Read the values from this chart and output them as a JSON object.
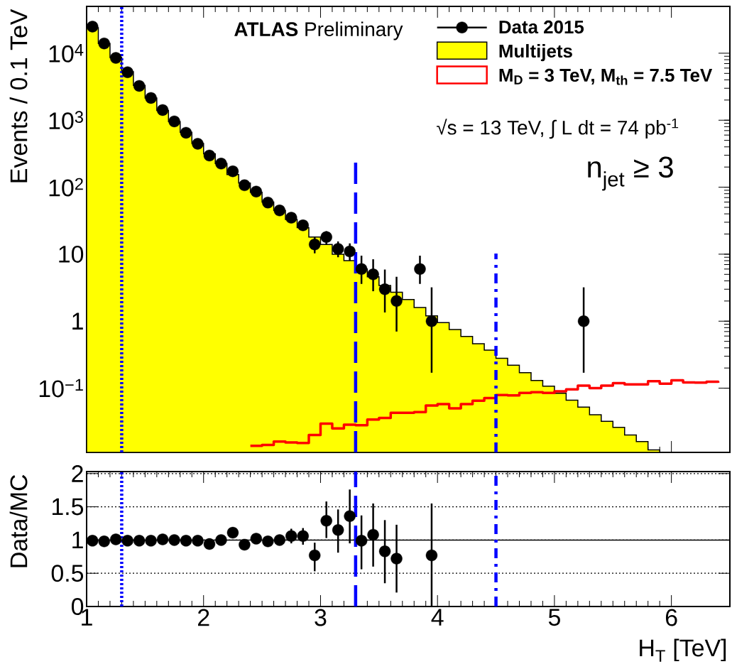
{
  "chart_data": [
    {
      "type": "histogram",
      "ylabel": "Events / 0.1 TeV",
      "annotations": [
        "**ATLAS** Preliminary",
        "√s = 13 TeV, ∫ L dt = 74 pb$^{-1}$",
        "n$_{jet}$ ≥ 3"
      ],
      "bins": [
        1.0,
        1.1,
        1.2,
        1.3,
        1.4,
        1.5,
        1.6,
        1.7,
        1.8,
        1.9,
        2.0,
        2.1,
        2.2,
        2.3,
        2.4,
        2.5,
        2.6,
        2.7,
        2.8,
        2.9,
        3.0,
        3.1,
        3.2,
        3.3,
        3.4,
        3.5,
        3.6,
        3.7,
        3.8,
        3.9,
        4.0,
        4.1,
        4.2,
        4.3,
        4.4,
        4.5,
        4.6,
        4.7,
        4.8,
        4.9,
        5.0,
        5.1,
        5.2,
        5.3,
        5.4,
        5.5,
        5.6,
        5.7,
        5.8,
        5.9,
        6.0,
        6.1,
        6.2,
        6.3,
        6.4,
        6.5
      ],
      "series": [
        {
          "name": "Data 2015",
          "type": "scatter",
          "color": "#000000",
          "marker": "circle",
          "x": [
            1.05,
            1.15,
            1.25,
            1.35,
            1.45,
            1.55,
            1.65,
            1.75,
            1.85,
            1.95,
            2.05,
            2.15,
            2.25,
            2.35,
            2.45,
            2.55,
            2.65,
            2.75,
            2.85,
            2.95,
            3.05,
            3.15,
            3.25,
            3.35,
            3.45,
            3.55,
            3.65,
            3.85,
            3.95,
            5.25
          ],
          "values": [
            25000,
            14000,
            8500,
            5200,
            3250,
            2150,
            1420,
            960,
            650,
            445,
            297,
            225,
            173,
            107,
            86,
            59,
            45,
            35,
            27,
            14,
            18,
            12,
            11,
            6,
            5,
            3,
            2,
            6,
            1,
            1
          ],
          "errors": [
            null,
            null,
            null,
            null,
            null,
            null,
            null,
            null,
            null,
            null,
            null,
            null,
            null,
            null,
            null,
            null,
            null,
            null,
            null,
            [
              10.3,
              18
            ],
            [
              14,
              22
            ],
            [
              9,
              15.5
            ],
            [
              8,
              14.5
            ],
            [
              3.6,
              9.5
            ],
            [
              2.8,
              8.4
            ],
            [
              1.35,
              5.9
            ],
            [
              0.7,
              4.6
            ],
            [
              3.6,
              9.5
            ],
            [
              0.17,
              3.2
            ],
            [
              0.17,
              3.2
            ]
          ]
        },
        {
          "name": "Multijets",
          "color": "#ffff00",
          "values": [
            24000,
            14000,
            8600,
            5300,
            3300,
            2150,
            1400,
            950,
            660,
            450,
            315,
            225,
            155,
            115,
            84,
            60,
            45,
            33,
            25,
            18,
            14,
            10,
            8,
            6,
            4.6,
            3.4,
            2.7,
            2.1,
            1.6,
            1.2,
            0.95,
            0.75,
            0.59,
            0.46,
            0.37,
            0.28,
            0.22,
            0.17,
            0.13,
            0.107,
            0.084,
            0.066,
            0.052,
            0.04,
            0.032,
            0.026,
            0.02,
            0.016,
            0.012,
            null,
            null,
            null,
            null,
            null,
            null
          ]
        },
        {
          "name": "M$_{D}$ = 3 TeV, M$_{th}$ = 7.5 TeV",
          "type": "step",
          "color": "#ff0000",
          "x": [
            2.4,
            2.5,
            2.6,
            2.7,
            2.8,
            2.9,
            3.0,
            3.1,
            3.2,
            3.3,
            3.4,
            3.5,
            3.6,
            3.7,
            3.8,
            3.9,
            4.0,
            4.1,
            4.2,
            4.3,
            4.4,
            4.5,
            4.6,
            4.7,
            4.8,
            4.9,
            5.0,
            5.1,
            5.2,
            5.3,
            5.4,
            5.5,
            5.6,
            5.7,
            5.8,
            5.9,
            6.0,
            6.1,
            6.2,
            6.3,
            6.4
          ],
          "values": [
            0.0138,
            0.0142,
            0.016,
            0.0155,
            0.0152,
            0.02,
            0.0295,
            0.025,
            0.0285,
            0.028,
            0.034,
            0.036,
            0.043,
            0.043,
            0.044,
            0.055,
            0.058,
            0.05,
            0.058,
            0.065,
            0.071,
            0.079,
            0.078,
            0.085,
            0.087,
            0.085,
            0.09,
            0.096,
            0.109,
            0.1,
            0.109,
            0.119,
            0.114,
            0.114,
            0.127,
            0.117,
            0.131,
            0.122,
            0.121,
            0.125,
            0.12
          ]
        }
      ],
      "xlim": [
        1,
        6.5
      ],
      "ylim": [
        0.011,
        50000
      ],
      "log": "y",
      "xticks": [
        1,
        2,
        3,
        4,
        5,
        6
      ],
      "yticks": [
        {
          "value": 0.1,
          "label": "10$^{−1}$"
        },
        1,
        10,
        {
          "value": 100,
          "label": "10$^{2}$"
        },
        {
          "value": 1000,
          "label": "10$^{3}$"
        },
        {
          "value": 10000,
          "label": "10$^{4}$"
        }
      ],
      "tick_labels": "y",
      "legend": "top right",
      "ref_lines": [
        {
          "axis": "x",
          "value": 1.3,
          "color": "#0000ff",
          "line_style": "dotted"
        },
        {
          "axis": "x",
          "value": 3.3,
          "color": "#0000ff",
          "line_style": "dashed"
        },
        {
          "axis": "x",
          "value": 4.5,
          "color": "#0000ff",
          "line_style": "dashdot"
        }
      ]
    },
    {
      "type": "scatter",
      "xlabel": "H$_{T}$ [TeV]",
      "ylabel": "Data/MC",
      "series": [
        {
          "color": "#000000",
          "marker": "circle",
          "x": [
            1.05,
            1.15,
            1.25,
            1.35,
            1.45,
            1.55,
            1.65,
            1.75,
            1.85,
            1.95,
            2.05,
            2.15,
            2.25,
            2.35,
            2.45,
            2.55,
            2.65,
            2.75,
            2.85,
            2.95,
            3.05,
            3.15,
            3.25,
            3.35,
            3.45,
            3.55,
            3.65,
            3.95
          ],
          "values": [
            0.99,
            0.98,
            1.01,
            0.99,
            0.99,
            0.99,
            1.01,
            1.0,
            0.99,
            0.99,
            0.94,
            1.0,
            1.11,
            0.93,
            1.02,
            0.98,
            1.0,
            1.06,
            1.06,
            0.77,
            1.29,
            1.15,
            1.36,
            0.99,
            1.08,
            0.83,
            0.72,
            0.77
          ],
          "errors": [
            null,
            null,
            null,
            null,
            null,
            null,
            null,
            null,
            null,
            null,
            null,
            null,
            null,
            null,
            null,
            null,
            [
              0.93,
              1.08
            ],
            [
              0.95,
              1.17
            ],
            [
              0.93,
              1.18
            ],
            [
              0.53,
              0.96
            ],
            [
              1.03,
              1.58
            ],
            [
              0.81,
              1.46
            ],
            [
              0.95,
              1.76
            ],
            [
              0.56,
              1.37
            ],
            [
              0.6,
              1.55
            ],
            [
              0.35,
              1.3
            ],
            [
              0.21,
              1.23
            ],
            [
              0,
              1.55
            ]
          ]
        }
      ],
      "xlim": [
        1,
        6.5
      ],
      "ylim": [
        0,
        2.03
      ],
      "xticks": [
        1,
        2,
        3,
        4,
        5,
        6
      ],
      "yticks": [
        0,
        0.5,
        1,
        1.5,
        2
      ],
      "grid": "y",
      "ref_lines": [
        {
          "axis": "y",
          "value": 1,
          "color": "#000000",
          "line_style": "solid"
        },
        {
          "axis": "x",
          "value": 1.3,
          "color": "#0000ff",
          "line_style": "dotted"
        },
        {
          "axis": "x",
          "value": 3.3,
          "color": "#0000ff",
          "line_style": "dashed"
        },
        {
          "axis": "x",
          "value": 4.5,
          "color": "#0000ff",
          "line_style": "dashdot"
        }
      ]
    }
  ]
}
